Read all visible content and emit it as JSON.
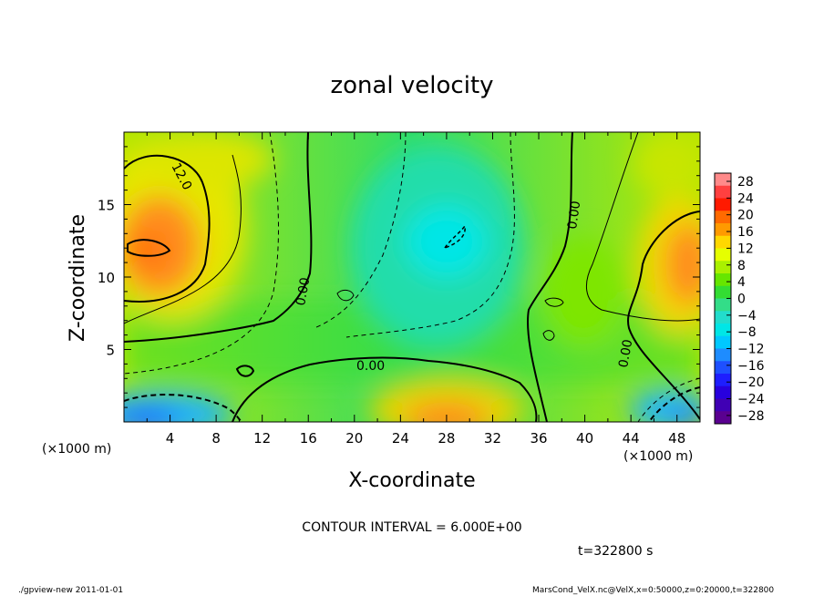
{
  "chart_data": {
    "type": "heatmap",
    "title": "zonal velocity",
    "xlabel": "X-coordinate",
    "ylabel": "Z-coordinate",
    "x_unit": "(×1000 m)",
    "y_unit": "(×1000 m)",
    "xlim": [
      0,
      50
    ],
    "ylim": [
      0,
      20
    ],
    "x_ticks": [
      "4",
      "8",
      "12",
      "16",
      "20",
      "24",
      "28",
      "32",
      "36",
      "40",
      "44",
      "48"
    ],
    "y_ticks": [
      "5",
      "10",
      "15"
    ],
    "colorbar_ticks": [
      "28",
      "24",
      "20",
      "16",
      "12",
      "8",
      "4",
      "0",
      "−4",
      "−8",
      "−12",
      "−16",
      "−20",
      "−24",
      "−28"
    ],
    "contour_labels": [
      "12.0",
      "0.00",
      "0.00",
      "0.00",
      "0.00"
    ],
    "contour_interval_text": "CONTOUR INTERVAL = 6.000E+00",
    "time_text": "t=322800 s",
    "footer_left": "./gpview-new  2011-01-01",
    "footer_right": "MarsCond_VelX.nc@VelX,x=0:50000,z=0:20000,t=322800",
    "features": [
      {
        "x": 3,
        "z": 12.3,
        "value": 20
      },
      {
        "x": 48,
        "z": 10.5,
        "value": 20
      },
      {
        "x": 28,
        "z": 1,
        "value": 20
      },
      {
        "x": 29,
        "z": 12.3,
        "value": -11
      },
      {
        "x": 2,
        "z": 1,
        "value": -13
      },
      {
        "x": 48,
        "z": 1,
        "value": -15
      }
    ]
  }
}
